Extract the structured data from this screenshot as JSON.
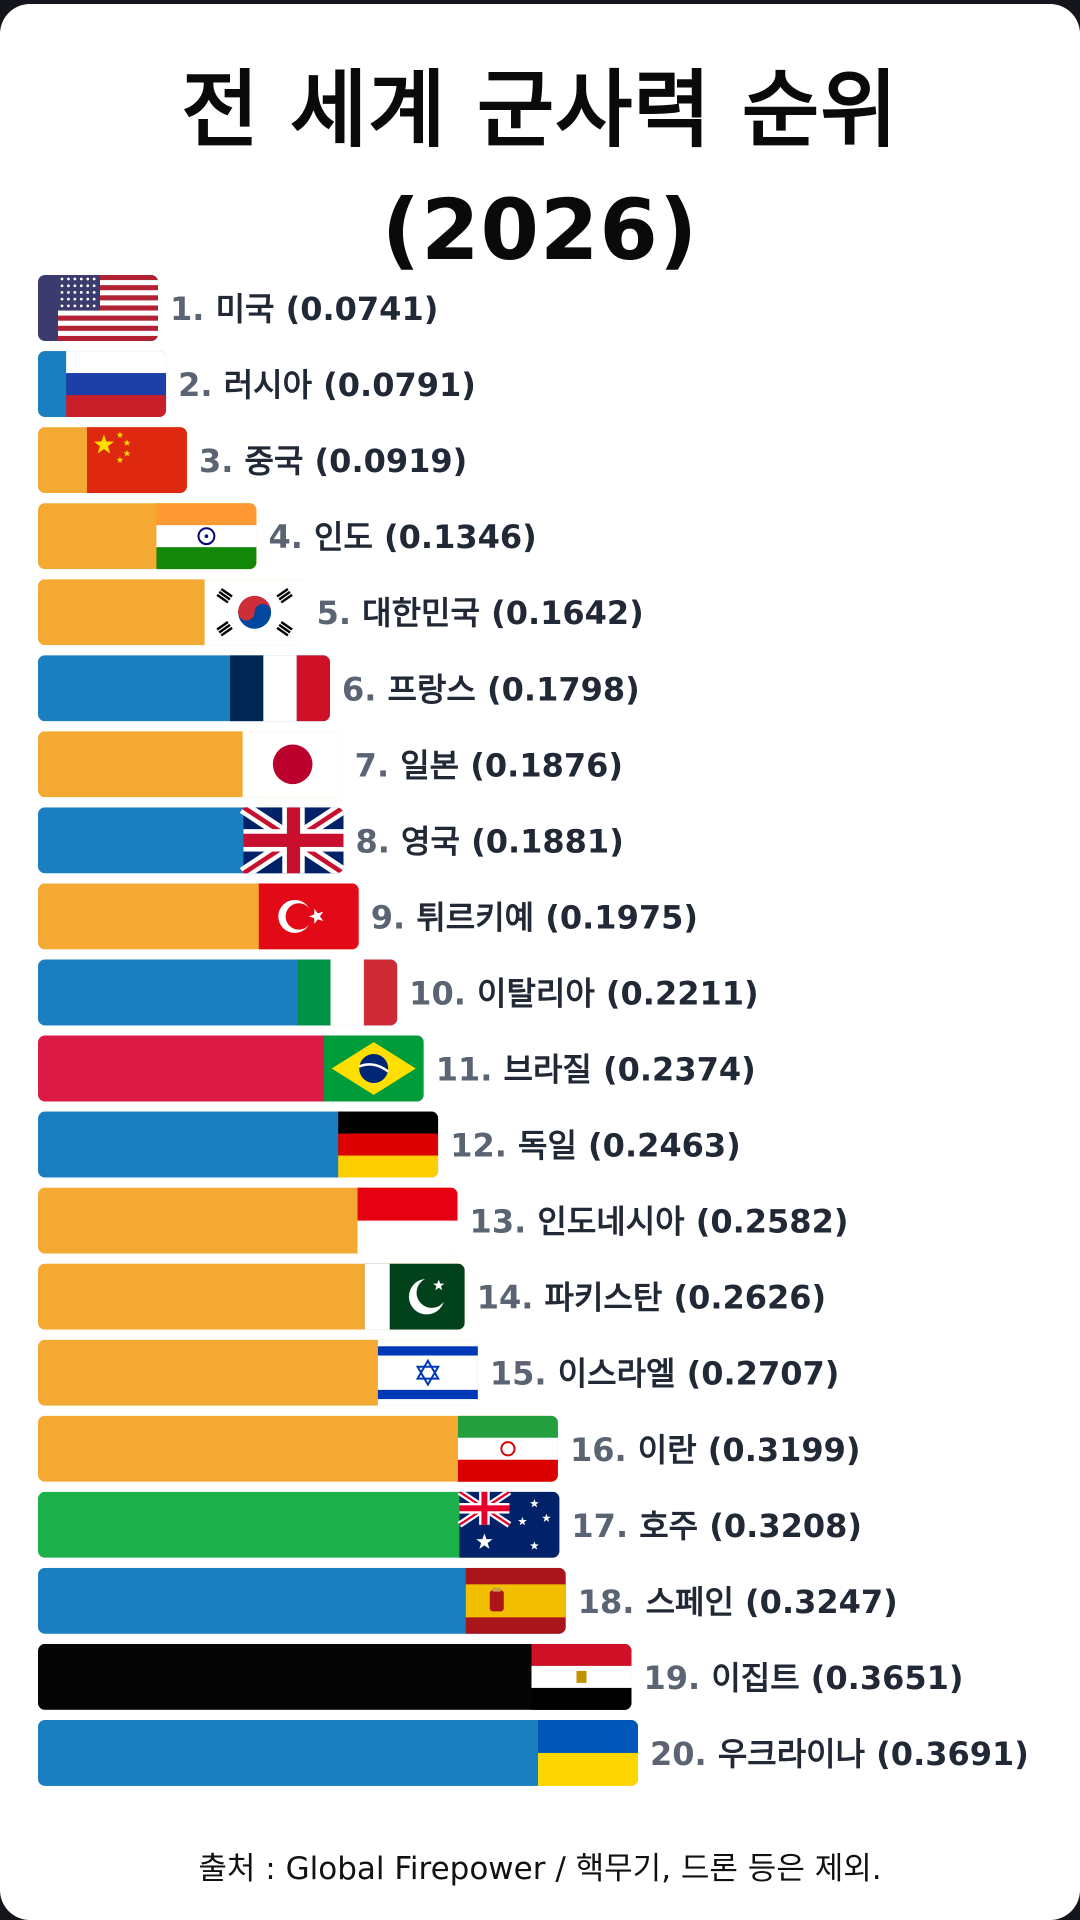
{
  "title_line1": "전 세계 군사력 순위",
  "title_line2": "(2026)",
  "source": "출처 : Global Firepower / 핵무기, 드론 등은 제외.",
  "chart_data": {
    "type": "bar",
    "orientation": "horizontal",
    "title": "전 세계 군사력 순위 (2026)",
    "xlabel": "",
    "ylabel": "",
    "categories": [
      "미국",
      "러시아",
      "중국",
      "인도",
      "대한민국",
      "프랑스",
      "일본",
      "영국",
      "튀르키예",
      "이탈리아",
      "브라질",
      "독일",
      "인도네시아",
      "파키스탄",
      "이스라엘",
      "이란",
      "호주",
      "스페인",
      "이집트",
      "우크라이나"
    ],
    "ranks": [
      "1.",
      "2.",
      "3.",
      "4.",
      "5.",
      "6.",
      "7.",
      "8.",
      "9.",
      "10.",
      "11.",
      "12.",
      "13.",
      "14.",
      "15.",
      "16.",
      "17.",
      "18.",
      "19.",
      "20."
    ],
    "value_labels": [
      "(0.0741)",
      "(0.0791)",
      "(0.0919)",
      "(0.1346)",
      "(0.1642)",
      "(0.1798)",
      "(0.1876)",
      "(0.1881)",
      "(0.1975)",
      "(0.2211)",
      "(0.2374)",
      "(0.2463)",
      "(0.2582)",
      "(0.2626)",
      "(0.2707)",
      "(0.3199)",
      "(0.3208)",
      "(0.3247)",
      "(0.3651)",
      "(0.3691)"
    ],
    "values": [
      0.0741,
      0.0791,
      0.0919,
      0.1346,
      0.1642,
      0.1798,
      0.1876,
      0.1881,
      0.1975,
      0.2211,
      0.2374,
      0.2463,
      0.2582,
      0.2626,
      0.2707,
      0.3199,
      0.3208,
      0.3247,
      0.3651,
      0.3691
    ],
    "bar_colors": [
      "#3c3b6e",
      "#1a7fc1",
      "#f4a933",
      "#f4a933",
      "#f4a933",
      "#1a7fc1",
      "#f4a933",
      "#1a7fc1",
      "#f4a933",
      "#1a7fc1",
      "#db1a45",
      "#1a7fc1",
      "#f4a933",
      "#f4a933",
      "#f4a933",
      "#f4a933",
      "#1cb04a",
      "#1a7fc1",
      "#050505",
      "#1a7fc1"
    ],
    "flag_icons": [
      "usa-flag-icon",
      "russia-flag-icon",
      "china-flag-icon",
      "india-flag-icon",
      "south-korea-flag-icon",
      "france-flag-icon",
      "japan-flag-icon",
      "uk-flag-icon",
      "turkey-flag-icon",
      "italy-flag-icon",
      "brazil-flag-icon",
      "germany-flag-icon",
      "indonesia-flag-icon",
      "pakistan-flag-icon",
      "israel-flag-icon",
      "iran-flag-icon",
      "australia-flag-icon",
      "spain-flag-icon",
      "egypt-flag-icon",
      "ukraine-flag-icon"
    ],
    "xlim": [
      0,
      0.3691
    ],
    "grid": false,
    "legend": "none"
  }
}
